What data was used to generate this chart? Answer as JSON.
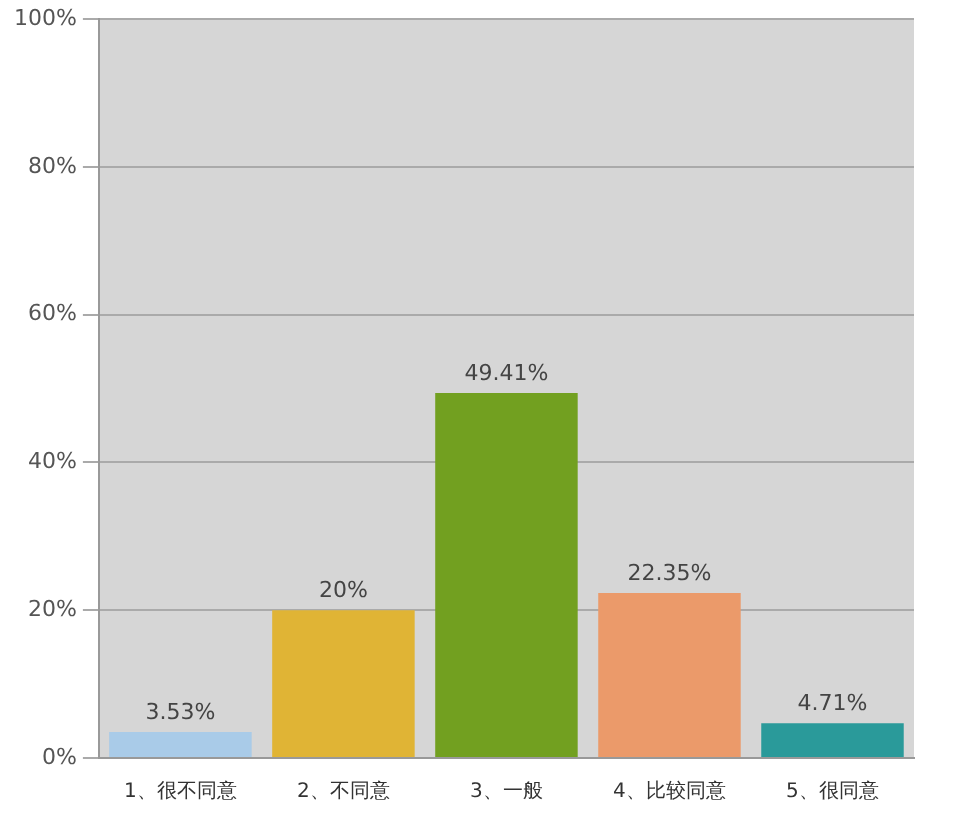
{
  "chart_data": {
    "type": "bar",
    "categories": [
      "1、很不同意",
      "2、不同意",
      "3、一般",
      "4、比较同意",
      "5、很同意"
    ],
    "values": [
      3.53,
      20,
      49.41,
      22.35,
      4.71
    ],
    "colors": [
      "#a9cbe8",
      "#e0b435",
      "#72a020",
      "#eb9a6a",
      "#2a9a9a"
    ],
    "value_labels": [
      "3.53%",
      "20%",
      "49.41%",
      "22.35%",
      "4.71%"
    ],
    "ylim": [
      0,
      100
    ],
    "yticks": [
      {
        "value": 0,
        "label": "0%"
      },
      {
        "value": 20,
        "label": "20%"
      },
      {
        "value": 40,
        "label": "40%"
      },
      {
        "value": 60,
        "label": "60%"
      },
      {
        "value": 80,
        "label": "80%"
      },
      {
        "value": 100,
        "label": "100%"
      }
    ],
    "grid": "y",
    "legend": false
  }
}
